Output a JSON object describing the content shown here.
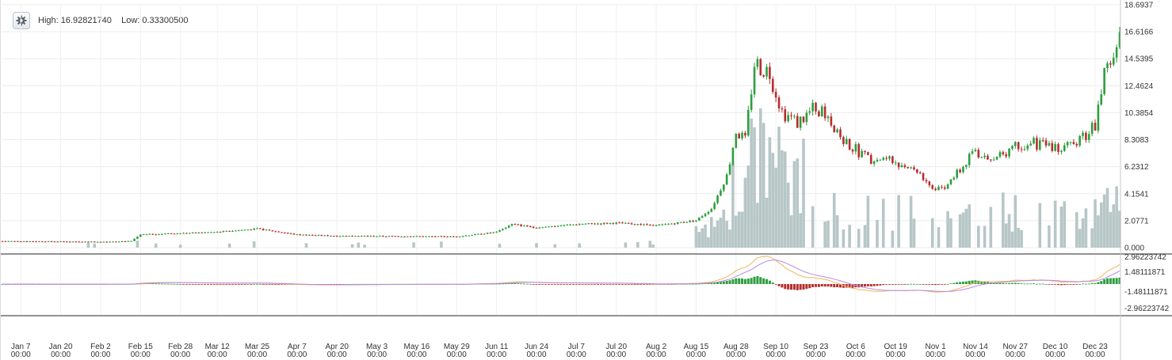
{
  "toolbar": {
    "settings_icon": "gear-icon",
    "high_label": "High:",
    "high_value": "16.92821740",
    "low_label": "Low:",
    "low_value": "0.33300500"
  },
  "chart_data": [
    {
      "type": "candlestick",
      "name": "price",
      "y_ticks": [
        "18.6937",
        "16.6166",
        "14.5395",
        "12.4624",
        "10.3854",
        "8.3083",
        "6.2312",
        "4.1541",
        "2.0771",
        "0.000"
      ],
      "ylim": [
        0,
        18.6937
      ],
      "x_ticks": [
        {
          "date": "Jan 7",
          "time": "00:00"
        },
        {
          "date": "Jan 20",
          "time": "00:00"
        },
        {
          "date": "Feb 2",
          "time": "00:00"
        },
        {
          "date": "Feb 15",
          "time": "00:00"
        },
        {
          "date": "Feb 28",
          "time": "00:00"
        },
        {
          "date": "Mar 12",
          "time": "00:00"
        },
        {
          "date": "Mar 25",
          "time": "00:00"
        },
        {
          "date": "Apr 7",
          "time": "00:00"
        },
        {
          "date": "Apr 20",
          "time": "00:00"
        },
        {
          "date": "May 3",
          "time": "00:00"
        },
        {
          "date": "May 16",
          "time": "00:00"
        },
        {
          "date": "May 29",
          "time": "00:00"
        },
        {
          "date": "Jun 11",
          "time": "00:00"
        },
        {
          "date": "Jun 24",
          "time": "00:00"
        },
        {
          "date": "Jul 7",
          "time": "00:00"
        },
        {
          "date": "Jul 20",
          "time": "00:00"
        },
        {
          "date": "Aug 2",
          "time": "00:00"
        },
        {
          "date": "Aug 15",
          "time": "00:00"
        },
        {
          "date": "Aug 28",
          "time": "00:00"
        },
        {
          "date": "Sep 10",
          "time": "00:00"
        },
        {
          "date": "Sep 23",
          "time": "00:00"
        },
        {
          "date": "Oct 6",
          "time": "00:00"
        },
        {
          "date": "Oct 19",
          "time": "00:00"
        },
        {
          "date": "Nov 1",
          "time": "00:00"
        },
        {
          "date": "Nov 14",
          "time": "00:00"
        },
        {
          "date": "Nov 27",
          "time": "00:00"
        },
        {
          "date": "Dec 10",
          "time": "00:00"
        },
        {
          "date": "Dec 23",
          "time": "00:00"
        }
      ],
      "close_keypoints": [
        [
          "Jan 1",
          0.5
        ],
        [
          "Feb 2",
          0.45
        ],
        [
          "Feb 12",
          0.5
        ],
        [
          "Feb 15",
          1.0
        ],
        [
          "Mar 12",
          1.2
        ],
        [
          "Mar 25",
          1.45
        ],
        [
          "Apr 7",
          1.0
        ],
        [
          "Apr 20",
          0.9
        ],
        [
          "May 29",
          0.85
        ],
        [
          "Jun 11",
          1.2
        ],
        [
          "Jun 16",
          1.8
        ],
        [
          "Jun 24",
          1.55
        ],
        [
          "Jul 7",
          1.8
        ],
        [
          "Jul 20",
          1.9
        ],
        [
          "Aug 2",
          1.7
        ],
        [
          "Aug 15",
          2.1
        ],
        [
          "Aug 20",
          3.0
        ],
        [
          "Aug 25",
          5.5
        ],
        [
          "Aug 28",
          9.0
        ],
        [
          "Aug 31",
          8.2
        ],
        [
          "Sep 3",
          14.2
        ],
        [
          "Sep 8",
          13.5
        ],
        [
          "Sep 12",
          10.5
        ],
        [
          "Sep 17",
          9.6
        ],
        [
          "Sep 23",
          10.8
        ],
        [
          "Sep 28",
          9.8
        ],
        [
          "Oct 3",
          8.0
        ],
        [
          "Oct 10",
          6.9
        ],
        [
          "Oct 19",
          6.6
        ],
        [
          "Oct 26",
          6.0
        ],
        [
          "Oct 31",
          4.6
        ],
        [
          "Nov 4",
          4.7
        ],
        [
          "Nov 10",
          6.2
        ],
        [
          "Nov 14",
          7.5
        ],
        [
          "Nov 19",
          6.5
        ],
        [
          "Nov 27",
          8.0
        ],
        [
          "Dec 3",
          8.0
        ],
        [
          "Dec 10",
          7.7
        ],
        [
          "Dec 20",
          8.6
        ],
        [
          "Dec 23",
          9.5
        ],
        [
          "Dec 26",
          13.2
        ],
        [
          "Dec 29",
          14.0
        ],
        [
          "Dec 31",
          16.0
        ]
      ],
      "high": 16.9282174,
      "low": 0.333005,
      "up_color": "#2e9e3e",
      "down_color": "#b52e2e",
      "volume_color": "#b7c6c6"
    },
    {
      "type": "macd",
      "name": "oscillator",
      "y_ticks": [
        "2.96223742",
        "1.48111871",
        "-1.48111871",
        "-2.96223742"
      ],
      "ylim": [
        -2.96223742,
        2.96223742
      ],
      "line_colors": [
        "#f4b35a",
        "#b58ae6",
        "#d070d0"
      ],
      "hist_up_color": "#2e9e3e",
      "hist_down_color": "#b52e2e"
    }
  ]
}
